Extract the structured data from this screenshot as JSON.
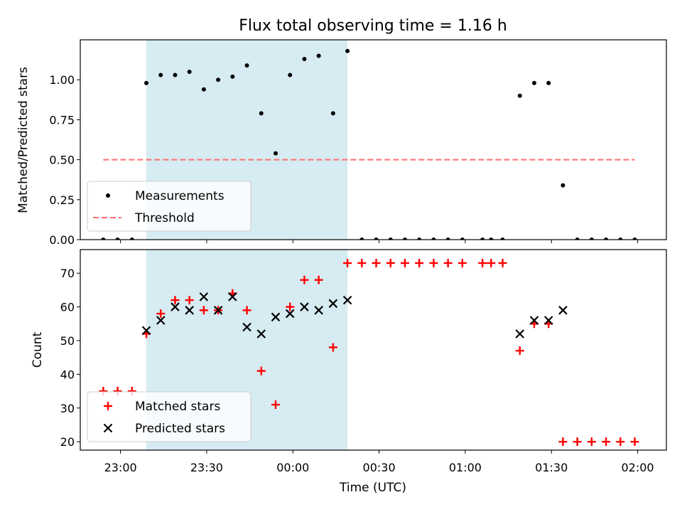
{
  "figure": {
    "title": "Flux total observing time = 1.16 h",
    "xlabel": "Time (UTC)",
    "x_tick_labels": [
      "23:00",
      "23:30",
      "00:00",
      "00:30",
      "01:00",
      "01:30",
      "02:00"
    ]
  },
  "chart_data": [
    {
      "type": "scatter",
      "ylabel": "Matched/Predicted stars",
      "x_range_minutes": [
        -14,
        190
      ],
      "ylim": [
        0,
        1.25
      ],
      "yticks": [
        0.0,
        0.25,
        0.5,
        0.75,
        1.0
      ],
      "y_tick_labels": [
        "0.00",
        "0.25",
        "0.50",
        "0.75",
        "1.00"
      ],
      "shaded_span_minutes": [
        9,
        79
      ],
      "shaded_color": "#add8e6",
      "legend_position": "lower-left",
      "series": [
        {
          "name": "Measurements",
          "marker": "dot",
          "color": "#000000",
          "x": [
            -6,
            -1,
            4,
            9,
            14,
            19,
            24,
            29,
            34,
            39,
            44,
            49,
            54,
            59,
            64,
            69,
            74,
            79,
            84,
            89,
            94,
            99,
            104,
            109,
            114,
            119,
            126,
            129,
            133,
            139,
            144,
            149,
            154,
            159,
            164,
            169,
            174,
            179
          ],
          "y": [
            0,
            0,
            0,
            0.98,
            1.03,
            1.03,
            1.05,
            0.94,
            1.0,
            1.02,
            1.09,
            0.79,
            0.54,
            1.03,
            1.13,
            1.15,
            0.79,
            1.18,
            0,
            0,
            0,
            0,
            0,
            0,
            0,
            0,
            0,
            0,
            0,
            0.9,
            0.98,
            0.98,
            0.34,
            0,
            0,
            0,
            0,
            0
          ]
        },
        {
          "name": "Threshold",
          "style": "dashed",
          "color": "#ff6f6f",
          "x": [
            -6,
            179
          ],
          "y": [
            0.5,
            0.5
          ]
        }
      ]
    },
    {
      "type": "scatter",
      "ylabel": "Count",
      "x_range_minutes": [
        -14,
        190
      ],
      "ylim": [
        17.5,
        77
      ],
      "yticks": [
        20,
        30,
        40,
        50,
        60,
        70
      ],
      "y_tick_labels": [
        "20",
        "30",
        "40",
        "50",
        "60",
        "70"
      ],
      "shaded_span_minutes": [
        9,
        79
      ],
      "shaded_color": "#add8e6",
      "legend_position": "lower-left",
      "series": [
        {
          "name": "Matched stars",
          "marker": "plus",
          "color": "#ff0000",
          "x": [
            -6,
            -1,
            4,
            9,
            14,
            19,
            24,
            29,
            34,
            39,
            44,
            49,
            54,
            59,
            64,
            69,
            74,
            79,
            84,
            89,
            94,
            99,
            104,
            109,
            114,
            119,
            126,
            129,
            133,
            139,
            144,
            149,
            154,
            159,
            164,
            169,
            174,
            179
          ],
          "y": [
            35,
            35,
            35,
            52,
            58,
            62,
            62,
            59,
            59,
            64,
            59,
            41,
            31,
            60,
            68,
            68,
            48,
            73,
            73,
            73,
            73,
            73,
            73,
            73,
            73,
            73,
            73,
            73,
            73,
            47,
            55,
            55,
            20,
            20,
            20,
            20,
            20,
            20
          ]
        },
        {
          "name": "Predicted stars",
          "marker": "x",
          "color": "#000000",
          "x": [
            9,
            14,
            19,
            24,
            29,
            34,
            39,
            44,
            49,
            54,
            59,
            64,
            69,
            74,
            79,
            139,
            144,
            149,
            154
          ],
          "y": [
            53,
            56,
            60,
            59,
            63,
            59,
            63,
            54,
            52,
            57,
            58,
            60,
            59,
            61,
            62,
            52,
            56,
            56,
            59
          ]
        }
      ]
    }
  ]
}
